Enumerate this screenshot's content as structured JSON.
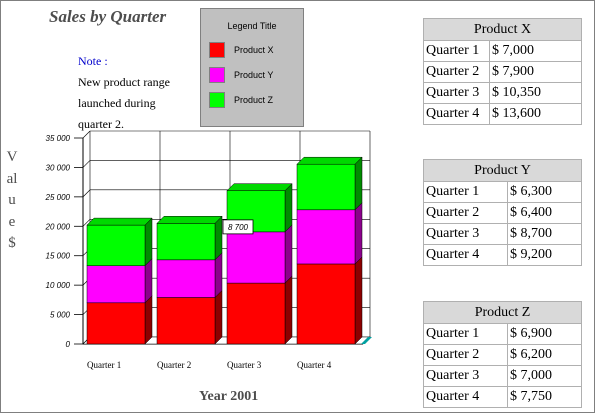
{
  "title": "Sales by Quarter",
  "note": {
    "label": "Note :",
    "lines": [
      "New product range",
      "launched during",
      "quarter 2."
    ]
  },
  "legend": {
    "title": "Legend Title",
    "items": [
      {
        "label": "Product X",
        "color": "#ff0000"
      },
      {
        "label": "Product Y",
        "color": "#ff00ff"
      },
      {
        "label": "Product Z",
        "color": "#00ff00"
      }
    ]
  },
  "tables": [
    {
      "title": "Product X",
      "rows": [
        [
          "Quarter 1",
          "$ 7,000"
        ],
        [
          "Quarter 2",
          "$ 7,900"
        ],
        [
          "Quarter 3",
          "$ 10,350"
        ],
        [
          "Quarter 4",
          "$ 13,600"
        ]
      ]
    },
    {
      "title": "Product Y",
      "rows": [
        [
          "Quarter 1",
          "$ 6,300"
        ],
        [
          "Quarter 2",
          "$ 6,400"
        ],
        [
          "Quarter 3",
          "$ 8,700"
        ],
        [
          "Quarter 4",
          "$ 9,200"
        ]
      ]
    },
    {
      "title": "Product Z",
      "rows": [
        [
          "Quarter 1",
          "$ 6,900"
        ],
        [
          "Quarter 2",
          "$ 6,200"
        ],
        [
          "Quarter 3",
          "$ 7,000"
        ],
        [
          "Quarter 4",
          "$ 7,750"
        ]
      ]
    }
  ],
  "chart_data": {
    "type": "bar",
    "stacked": true,
    "three_d": true,
    "title": "Sales by Quarter",
    "xlabel": "Year 2001",
    "ylabel": "Value $",
    "categories": [
      "Quarter 1",
      "Quarter 2",
      "Quarter 3",
      "Quarter 4"
    ],
    "series": [
      {
        "name": "Product X",
        "color": "#ff0000",
        "values": [
          7000,
          7900,
          10350,
          13600
        ]
      },
      {
        "name": "Product Y",
        "color": "#ff00ff",
        "values": [
          6300,
          6400,
          8700,
          9200
        ]
      },
      {
        "name": "Product Z",
        "color": "#00ff00",
        "values": [
          6900,
          6200,
          7000,
          7750
        ]
      }
    ],
    "ylim": [
      0,
      35000
    ],
    "yticks": [
      0,
      5000,
      10000,
      15000,
      20000,
      25000,
      30000,
      35000
    ],
    "ytick_labels": [
      "0",
      "5 000",
      "10 000",
      "15 000",
      "20 000",
      "25 000",
      "30 000",
      "35 000"
    ],
    "grid": true,
    "legend_position": "top-center",
    "annotations": [
      {
        "category": "Quarter 3",
        "series": "Product Y",
        "text": "8 700"
      }
    ]
  }
}
